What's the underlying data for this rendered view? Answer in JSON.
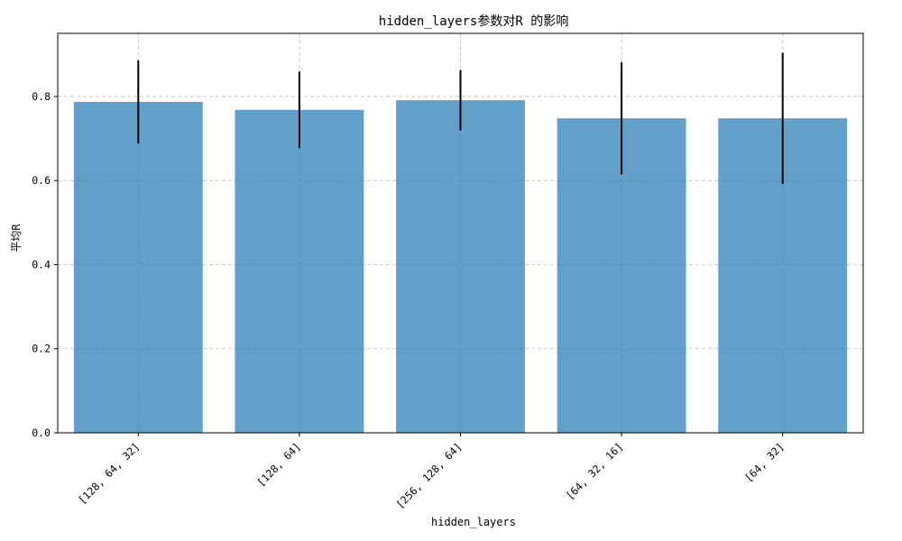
{
  "chart_data": {
    "type": "bar",
    "title": "hidden_layers参数对R  的影响",
    "xlabel": "hidden_layers",
    "ylabel": "平均R",
    "categories": [
      "[128, 64, 32]",
      "[128, 64]",
      "[256, 128, 64]",
      "[64, 32, 16]",
      "[64, 32]"
    ],
    "values": [
      0.787,
      0.768,
      0.791,
      0.748,
      0.748
    ],
    "error": [
      0.099,
      0.091,
      0.072,
      0.133,
      0.156
    ],
    "ylim": [
      0,
      0.95
    ],
    "yticks": [
      0.0,
      0.2,
      0.4,
      0.6,
      0.8
    ],
    "ytick_labels": [
      "0.0",
      "0.2",
      "0.4",
      "0.6",
      "0.8"
    ],
    "grid": true,
    "bar_color": "#1f77b4",
    "bar_opacity": 0.7,
    "error_color": "#000000",
    "grid_color": "#b0b0b0"
  }
}
